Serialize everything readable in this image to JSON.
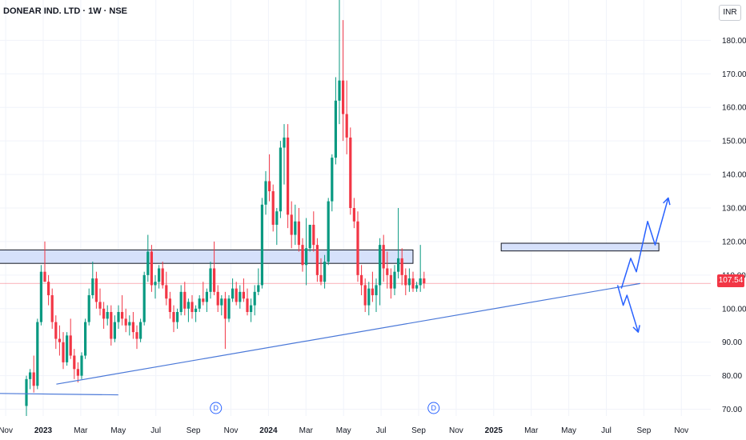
{
  "header": {
    "title": "DONEAR IND. LTD · 1W · NSE",
    "currency": "INR",
    "last_price": "107.54"
  },
  "chart_data": {
    "type": "candlestick",
    "timeframe": "weekly",
    "ylim": [
      68,
      192
    ],
    "y_ticks": [
      70,
      80,
      90,
      100,
      110,
      120,
      130,
      140,
      150,
      160,
      170,
      180
    ],
    "x_ticks": [
      {
        "label": "Nov",
        "month": -2,
        "bold": false
      },
      {
        "label": "2023",
        "month": 0,
        "bold": true
      },
      {
        "label": "Mar",
        "month": 2,
        "bold": false
      },
      {
        "label": "May",
        "month": 4,
        "bold": false
      },
      {
        "label": "Jul",
        "month": 6,
        "bold": false
      },
      {
        "label": "Sep",
        "month": 8,
        "bold": false
      },
      {
        "label": "Nov",
        "month": 10,
        "bold": false
      },
      {
        "label": "2024",
        "month": 12,
        "bold": true
      },
      {
        "label": "Mar",
        "month": 14,
        "bold": false
      },
      {
        "label": "May",
        "month": 16,
        "bold": false
      },
      {
        "label": "Jul",
        "month": 18,
        "bold": false
      },
      {
        "label": "Sep",
        "month": 20,
        "bold": false
      },
      {
        "label": "Nov",
        "month": 22,
        "bold": false
      },
      {
        "label": "2025",
        "month": 24,
        "bold": true
      },
      {
        "label": "Mar",
        "month": 26,
        "bold": false
      },
      {
        "label": "May",
        "month": 28,
        "bold": false
      },
      {
        "label": "Jul",
        "month": 30,
        "bold": false
      },
      {
        "label": "Sep",
        "month": 32,
        "bold": false
      },
      {
        "label": "Nov",
        "month": 34,
        "bold": false
      }
    ],
    "dividend_markers": [
      {
        "label": "D",
        "month": 9.2
      },
      {
        "label": "D",
        "month": 20.8
      }
    ],
    "candles": [
      [
        71,
        80,
        68,
        79
      ],
      [
        79,
        82,
        76,
        81
      ],
      [
        81,
        86,
        75,
        77
      ],
      [
        77,
        97,
        76,
        96
      ],
      [
        96,
        113,
        95,
        111
      ],
      [
        111,
        120,
        108,
        108
      ],
      [
        108,
        110,
        101,
        104
      ],
      [
        104,
        106,
        94,
        96
      ],
      [
        96,
        98,
        88,
        91
      ],
      [
        91,
        95,
        86,
        90
      ],
      [
        90,
        93,
        82,
        84
      ],
      [
        84,
        93,
        83,
        92
      ],
      [
        92,
        97,
        85,
        86
      ],
      [
        86,
        88,
        79,
        82
      ],
      [
        82,
        84,
        78,
        80
      ],
      [
        80,
        87,
        79,
        86
      ],
      [
        86,
        97,
        85,
        96
      ],
      [
        96,
        106,
        95,
        104
      ],
      [
        104,
        114,
        103,
        109
      ],
      [
        109,
        111,
        100,
        102
      ],
      [
        102,
        106,
        98,
        100
      ],
      [
        100,
        102,
        94,
        97
      ],
      [
        97,
        101,
        95,
        99
      ],
      [
        99,
        101,
        89,
        91
      ],
      [
        91,
        98,
        90,
        96
      ],
      [
        96,
        101,
        94,
        99
      ],
      [
        99,
        104,
        95,
        97
      ],
      [
        97,
        100,
        93,
        95
      ],
      [
        95,
        98,
        92,
        96
      ],
      [
        96,
        99,
        91,
        93
      ],
      [
        93,
        95,
        88,
        91
      ],
      [
        91,
        97,
        90,
        96
      ],
      [
        96,
        111,
        95,
        110
      ],
      [
        110,
        122,
        108,
        117
      ],
      [
        117,
        119,
        105,
        107
      ],
      [
        107,
        110,
        103,
        108
      ],
      [
        108,
        113,
        106,
        112
      ],
      [
        112,
        114,
        106,
        107
      ],
      [
        107,
        111,
        101,
        103
      ],
      [
        103,
        105,
        97,
        99
      ],
      [
        99,
        101,
        93,
        96
      ],
      [
        96,
        100,
        94,
        99
      ],
      [
        99,
        107,
        98,
        105
      ],
      [
        105,
        108,
        98,
        100
      ],
      [
        100,
        103,
        96,
        102
      ],
      [
        102,
        104,
        97,
        99
      ],
      [
        99,
        101,
        96,
        100
      ],
      [
        100,
        104,
        99,
        103
      ],
      [
        103,
        108,
        101,
        102
      ],
      [
        102,
        106,
        99,
        105
      ],
      [
        105,
        114,
        103,
        112
      ],
      [
        112,
        120,
        104,
        105
      ],
      [
        105,
        107,
        99,
        101
      ],
      [
        101,
        104,
        98,
        103
      ],
      [
        103,
        105,
        88,
        97
      ],
      [
        97,
        104,
        96,
        103
      ],
      [
        103,
        109,
        102,
        106
      ],
      [
        106,
        108,
        101,
        102
      ],
      [
        102,
        107,
        100,
        105
      ],
      [
        105,
        109,
        102,
        103
      ],
      [
        103,
        106,
        98,
        99
      ],
      [
        99,
        103,
        96,
        101
      ],
      [
        101,
        107,
        98,
        105
      ],
      [
        105,
        112,
        104,
        107
      ],
      [
        107,
        133,
        106,
        131
      ],
      [
        131,
        141,
        128,
        138
      ],
      [
        138,
        146,
        132,
        135
      ],
      [
        135,
        137,
        123,
        125
      ],
      [
        125,
        130,
        119,
        129
      ],
      [
        129,
        150,
        127,
        148
      ],
      [
        148,
        155,
        137,
        151
      ],
      [
        151,
        155,
        124,
        128
      ],
      [
        128,
        132,
        118,
        122
      ],
      [
        122,
        131,
        119,
        126
      ],
      [
        126,
        130,
        117,
        119
      ],
      [
        119,
        121,
        111,
        113
      ],
      [
        113,
        127,
        107,
        118
      ],
      [
        118,
        124,
        117,
        125
      ],
      [
        125,
        129,
        117,
        119
      ],
      [
        119,
        121,
        108,
        110
      ],
      [
        110,
        115,
        107,
        108
      ],
      [
        108,
        116,
        106,
        114
      ],
      [
        114,
        133,
        113,
        132
      ],
      [
        132,
        146,
        129,
        145
      ],
      [
        145,
        169,
        143,
        162
      ],
      [
        162,
        196,
        155,
        168
      ],
      [
        168,
        186,
        150,
        158
      ],
      [
        158,
        168,
        146,
        151
      ],
      [
        151,
        154,
        128,
        130
      ],
      [
        130,
        133,
        124,
        126
      ],
      [
        126,
        129,
        108,
        110
      ],
      [
        110,
        113,
        104,
        107
      ],
      [
        107,
        109,
        99,
        101
      ],
      [
        101,
        108,
        98,
        106
      ],
      [
        106,
        111,
        102,
        104
      ],
      [
        104,
        109,
        99,
        107
      ],
      [
        107,
        121,
        101,
        119
      ],
      [
        119,
        122,
        108,
        112
      ],
      [
        112,
        117,
        106,
        110
      ],
      [
        110,
        112,
        103,
        106
      ],
      [
        106,
        113,
        104,
        111
      ],
      [
        111,
        130,
        109,
        115
      ],
      [
        115,
        118,
        107,
        110
      ],
      [
        110,
        112,
        104,
        107
      ],
      [
        107,
        112,
        105,
        109
      ],
      [
        109,
        111,
        105,
        106
      ],
      [
        106,
        108,
        105,
        107
      ],
      [
        107,
        119,
        105,
        109
      ],
      [
        109,
        111,
        106,
        107.54
      ]
    ]
  },
  "annotations": {
    "resistance_zones": [
      {
        "from_month": -3.5,
        "to_month": 19.7,
        "price_low": 113.5,
        "price_high": 117.5
      },
      {
        "from_month": 24.4,
        "to_month": 32.8,
        "price_low": 117.2,
        "price_high": 119.5
      }
    ],
    "trendlines": [
      {
        "from": [
          -3.5,
          74.8
        ],
        "to": [
          4.0,
          74.3
        ]
      },
      {
        "from": [
          0.7,
          77.5
        ],
        "to": [
          31.8,
          107.5
        ]
      }
    ],
    "projections": [
      {
        "name": "bullish",
        "points": [
          [
            30.8,
            106
          ],
          [
            31.3,
            115
          ],
          [
            31.6,
            111
          ],
          [
            32.2,
            126
          ],
          [
            32.6,
            119
          ],
          [
            33.3,
            133
          ]
        ]
      },
      {
        "name": "bearish",
        "points": [
          [
            30.6,
            107
          ],
          [
            30.9,
            101
          ],
          [
            31.1,
            104
          ],
          [
            31.7,
            93
          ]
        ]
      }
    ],
    "colors": {
      "bull": "#089981",
      "bear": "#f23645",
      "zone_fill": "#d6e1fb",
      "trend": "#4a78d8",
      "projection": "#2962ff",
      "grid": "#f0f3fa",
      "price_line": "#f23645"
    }
  }
}
